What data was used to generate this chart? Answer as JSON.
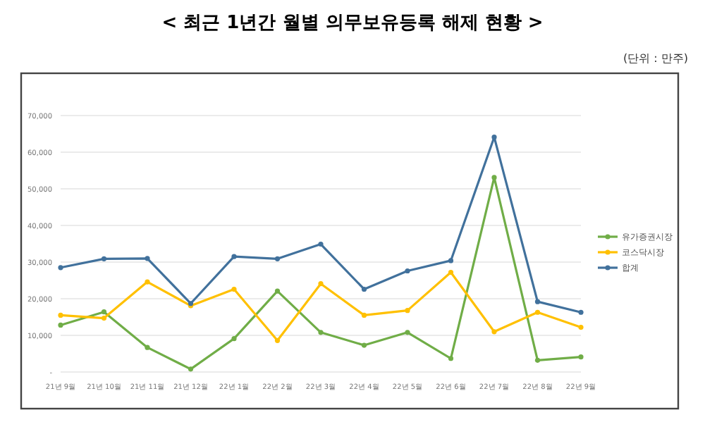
{
  "chart_data": {
    "type": "line",
    "title": "< 최근 1년간 월별 의무보유등록 해제 현황 >",
    "annotations": [
      "(단위 : 만주)"
    ],
    "categories": [
      "21년 9월",
      "21년 10월",
      "21년 11월",
      "21년 12월",
      "22년 1월",
      "22년 2월",
      "22년 3월",
      "22년 4월",
      "22년 5월",
      "22년 6월",
      "22년 7월",
      "22년 8월",
      "22년 9월"
    ],
    "series": [
      {
        "name": "유가증권시장",
        "color": "#70ad47",
        "values": [
          12800,
          16400,
          6700,
          800,
          9100,
          22100,
          10800,
          7300,
          10800,
          3700,
          53100,
          3200,
          4100
        ]
      },
      {
        "name": "코스닥시장",
        "color": "#ffc000",
        "values": [
          15500,
          14700,
          24600,
          18100,
          22600,
          8600,
          24100,
          15500,
          16800,
          27200,
          11000,
          16300,
          12200
        ]
      },
      {
        "name": "합계",
        "color": "#41719c",
        "values": [
          28500,
          30900,
          31000,
          18700,
          31500,
          30900,
          34900,
          22600,
          27600,
          30400,
          64100,
          19200,
          16300
        ]
      }
    ],
    "ylim": [
      0,
      70000
    ],
    "yticks": [
      {
        "value": 0,
        "label": "-"
      },
      {
        "value": 10000,
        "label": "10,000"
      },
      {
        "value": 20000,
        "label": "20,000"
      },
      {
        "value": 30000,
        "label": "30,000"
      },
      {
        "value": 40000,
        "label": "40,000"
      },
      {
        "value": 50000,
        "label": "50,000"
      },
      {
        "value": 60000,
        "label": "60,000"
      },
      {
        "value": 70000,
        "label": "70,000"
      }
    ],
    "grid": "y",
    "legend": "right",
    "marker": "circle",
    "line_style": "solid"
  }
}
